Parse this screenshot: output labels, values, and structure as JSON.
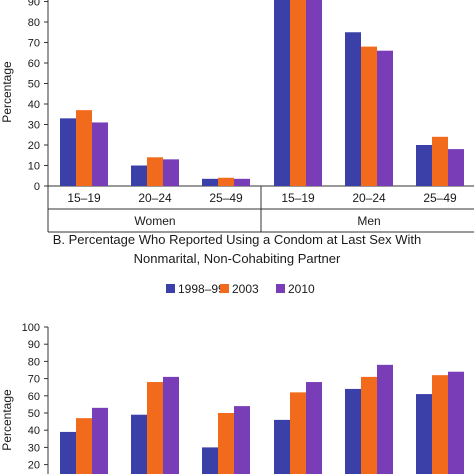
{
  "colors": {
    "1998–99": "#3b3fa8",
    "2003": "#f26a1b",
    "2010": "#7a3db8"
  },
  "chart_data": [
    {
      "type": "bar",
      "ylabel": "Percentage",
      "ylim": [
        0,
        100
      ],
      "yticks": [
        0,
        10,
        20,
        30,
        40,
        50,
        60,
        70,
        80,
        90
      ],
      "grid": false,
      "groups": [
        "Women",
        "Men"
      ],
      "categories": [
        "15–19",
        "20–24",
        "25–49",
        "15–19",
        "20–24",
        "25–49"
      ],
      "series": [
        {
          "name": "1998–99",
          "values": [
            33,
            10,
            3.5,
            94,
            75,
            20
          ]
        },
        {
          "name": "2003",
          "values": [
            37,
            14,
            4,
            98,
            68,
            24
          ]
        },
        {
          "name": "2010",
          "values": [
            31,
            13,
            3.5,
            94,
            66,
            18
          ]
        }
      ]
    },
    {
      "type": "bar",
      "title": "B. Percentage Who Reported Using a Condom at Last Sex With Nonmarital, Non-Cohabiting Partner",
      "ylabel": "Percentage",
      "ylim": [
        20,
        100
      ],
      "yticks": [
        20,
        30,
        40,
        50,
        60,
        70,
        80,
        90,
        100
      ],
      "grid": false,
      "legend": "top",
      "series": [
        {
          "name": "1998–99",
          "values": [
            39,
            49,
            30,
            46,
            64,
            61
          ]
        },
        {
          "name": "2003",
          "values": [
            47,
            68,
            50,
            62,
            71,
            72
          ]
        },
        {
          "name": "2010",
          "values": [
            53,
            71,
            54,
            68,
            78,
            74
          ]
        }
      ]
    }
  ]
}
